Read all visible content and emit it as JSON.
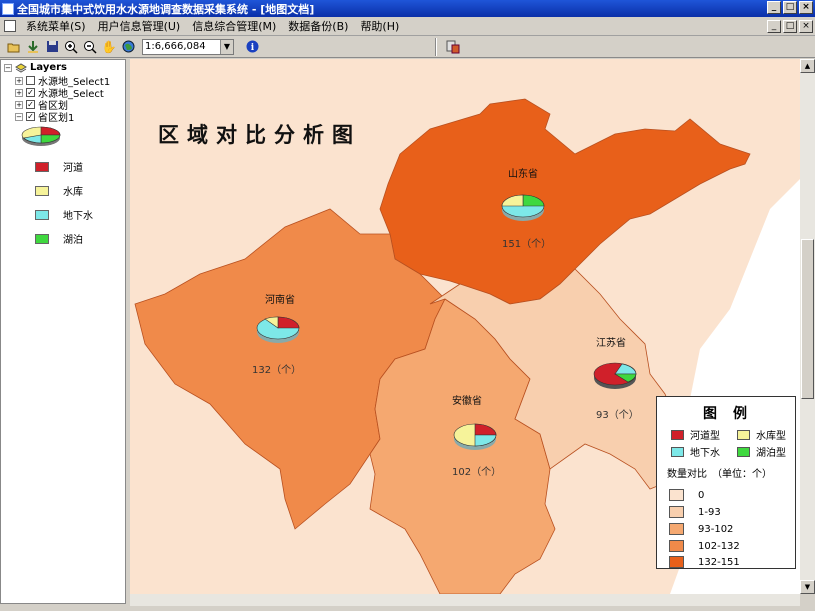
{
  "window": {
    "title": "全国城市集中式饮用水水源地调查数据采集系统 - [地图文档]",
    "buttons": [
      "_",
      "□",
      "×"
    ]
  },
  "menu": [
    "系统菜单(S)",
    "用户信息管理(U)",
    "信息综合管理(M)",
    "数据备份(B)",
    "帮助(H)"
  ],
  "toolbar": {
    "scale_value": "1:6,666,084",
    "tools": [
      "open-icon",
      "add-data-icon",
      "save-icon",
      "zoom-in-icon",
      "zoom-out-icon",
      "pan-icon",
      "globe-icon",
      "info-icon",
      "identify-icon"
    ]
  },
  "toc": {
    "root": "Layers",
    "layers": [
      {
        "name": "水源地_Select1",
        "checked": false
      },
      {
        "name": "水源地_Select",
        "checked": true
      },
      {
        "name": "省区划",
        "checked": true
      },
      {
        "name": "省区划1",
        "checked": true
      }
    ],
    "legend": [
      {
        "label": "河道",
        "color": "#d0202a"
      },
      {
        "label": "水库",
        "color": "#f6f39a"
      },
      {
        "label": "地下水",
        "color": "#7de8e8"
      },
      {
        "label": "湖泊",
        "color": "#3fd83f"
      }
    ]
  },
  "map": {
    "title": "区域对比分析图",
    "provinces": [
      {
        "name": "山东省",
        "count": "151（个）",
        "color": "#e8601a"
      },
      {
        "name": "河南省",
        "count": "132（个）",
        "color": "#f08a4a"
      },
      {
        "name": "安徽省",
        "count": "102（个）",
        "color": "#f5a870"
      },
      {
        "name": "江苏省",
        "count": "93（个）",
        "color": "#f8cfae"
      }
    ],
    "legend": {
      "title": "图例",
      "types": [
        {
          "label": "河道型",
          "color": "#d0202a"
        },
        {
          "label": "水库型",
          "color": "#f6f39a"
        },
        {
          "label": "地下水",
          "color": "#7de8e8"
        },
        {
          "label": "湖泊型",
          "color": "#3fd83f"
        }
      ],
      "subtitle": "数量对比　（单位：个）",
      "ranges": [
        {
          "label": "0",
          "color": "#fbe3cf"
        },
        {
          "label": "1-93",
          "color": "#f8cfae"
        },
        {
          "label": "93-102",
          "color": "#f5a870"
        },
        {
          "label": "102-132",
          "color": "#f08a4a"
        },
        {
          "label": "132-151",
          "color": "#e8601a"
        }
      ]
    }
  }
}
